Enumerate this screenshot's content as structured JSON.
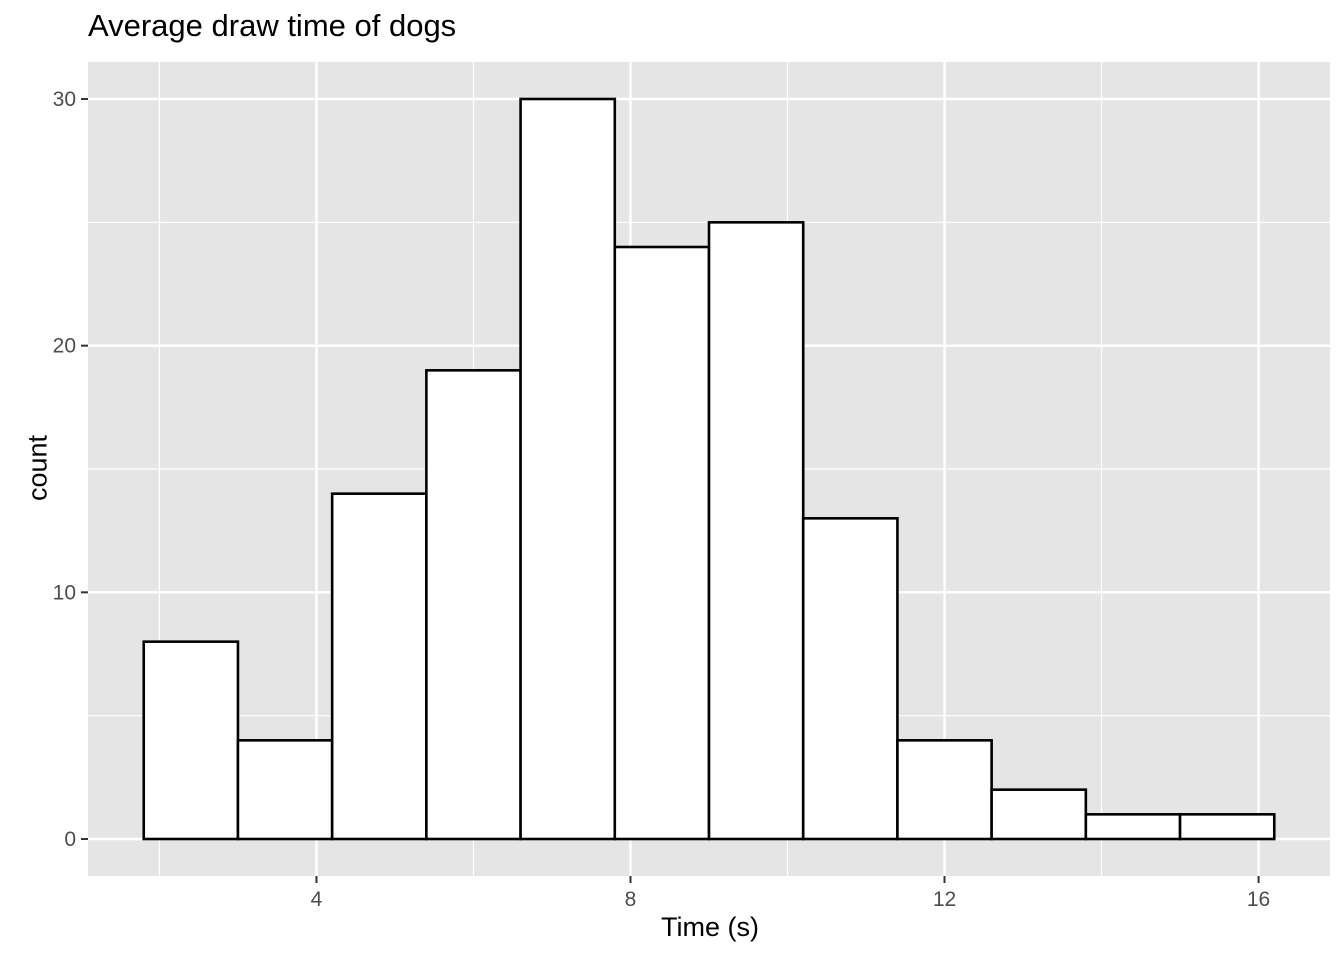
{
  "chart_data": {
    "type": "bar",
    "title": "Average draw time of dogs",
    "xlabel": "Time (s)",
    "ylabel": "count",
    "bins": [
      {
        "x0": 1.8,
        "x1": 3.0,
        "count": 8
      },
      {
        "x0": 3.0,
        "x1": 4.2,
        "count": 4
      },
      {
        "x0": 4.2,
        "x1": 5.4,
        "count": 14
      },
      {
        "x0": 5.4,
        "x1": 6.6,
        "count": 19
      },
      {
        "x0": 6.6,
        "x1": 7.8,
        "count": 30
      },
      {
        "x0": 7.8,
        "x1": 9.0,
        "count": 24
      },
      {
        "x0": 9.0,
        "x1": 10.2,
        "count": 25
      },
      {
        "x0": 10.2,
        "x1": 11.4,
        "count": 13
      },
      {
        "x0": 11.4,
        "x1": 12.6,
        "count": 4
      },
      {
        "x0": 12.6,
        "x1": 13.8,
        "count": 2
      },
      {
        "x0": 13.8,
        "x1": 15.0,
        "count": 1
      },
      {
        "x0": 15.0,
        "x1": 16.2,
        "count": 1
      }
    ],
    "xticks": [
      4,
      8,
      12,
      16
    ],
    "yticks": [
      0,
      10,
      20,
      30
    ],
    "xlim": [
      1.09,
      16.91
    ],
    "ylim": [
      -1.5,
      31.5
    ],
    "grid": true,
    "colors": {
      "panel": "#e5e5e5",
      "grid": "#ffffff",
      "bar_fill": "#ffffff",
      "bar_stroke": "#000000",
      "tick_text": "#4d4d4d"
    }
  }
}
